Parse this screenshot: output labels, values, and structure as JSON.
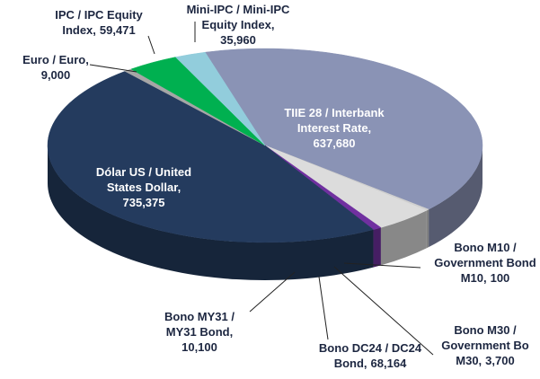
{
  "chart_data": {
    "type": "pie",
    "categories": [
      "TIIE 28 / Interbank Interest Rate,",
      "Bono M10 / Government Bond M10,",
      "Bono M30 / Government Bo M30,",
      "Bono DC24 / DC24 Bond,",
      "Bono MY31 / MY31 Bond,",
      "Dólar US / United States Dollar,",
      "Euro / Euro,",
      "IPC / IPC Equity Index,",
      "Mini-IPC / Mini-IPC Equity Index,"
    ],
    "values": [
      637680,
      100,
      3700,
      68164,
      10100,
      735375,
      9000,
      59471,
      35960
    ],
    "value_labels": [
      "637,680",
      "100",
      "3,700",
      "68,164",
      "10,100",
      "735,375",
      "9,000",
      "59,471",
      "35,960"
    ],
    "colors": [
      "#8a93b5",
      "#b5b5b5",
      "#d0d0d0",
      "#dcdcdc",
      "#7030a0",
      "#243b5e",
      "#a6a6a6",
      "#00b050",
      "#92cddc"
    ]
  }
}
